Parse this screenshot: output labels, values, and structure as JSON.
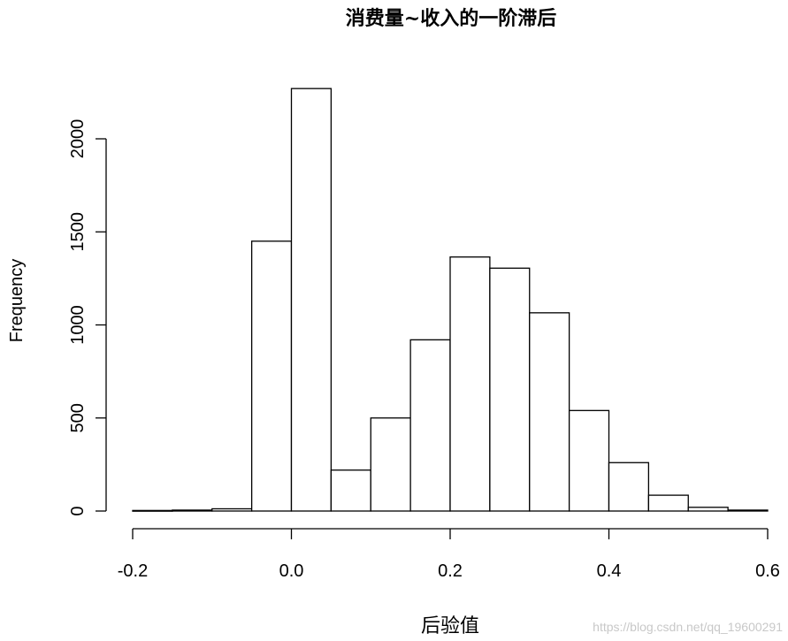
{
  "chart_data": {
    "type": "bar",
    "title": "消费量~收入的一阶滞后",
    "xlabel": "后验值",
    "ylabel": "Frequency",
    "bin_edges": [
      -0.2,
      -0.15,
      -0.1,
      -0.05,
      0.0,
      0.05,
      0.1,
      0.15,
      0.2,
      0.25,
      0.3,
      0.35,
      0.4,
      0.45,
      0.5,
      0.55,
      0.6
    ],
    "values": [
      3,
      5,
      12,
      1450,
      2270,
      220,
      500,
      920,
      1365,
      1305,
      1065,
      540,
      260,
      85,
      20,
      5
    ],
    "xlim": [
      -0.2,
      0.6
    ],
    "ylim": [
      0,
      2000
    ],
    "x_ticks": [
      -0.2,
      0.0,
      0.2,
      0.4,
      0.6
    ],
    "x_tick_labels": [
      "-0.2",
      "0.0",
      "0.2",
      "0.4",
      "0.6"
    ],
    "y_ticks": [
      0,
      500,
      1000,
      1500,
      2000
    ],
    "y_tick_labels": [
      "0",
      "500",
      "1000",
      "1500",
      "2000"
    ]
  },
  "watermark": "https://blog.csdn.net/qq_19600291"
}
